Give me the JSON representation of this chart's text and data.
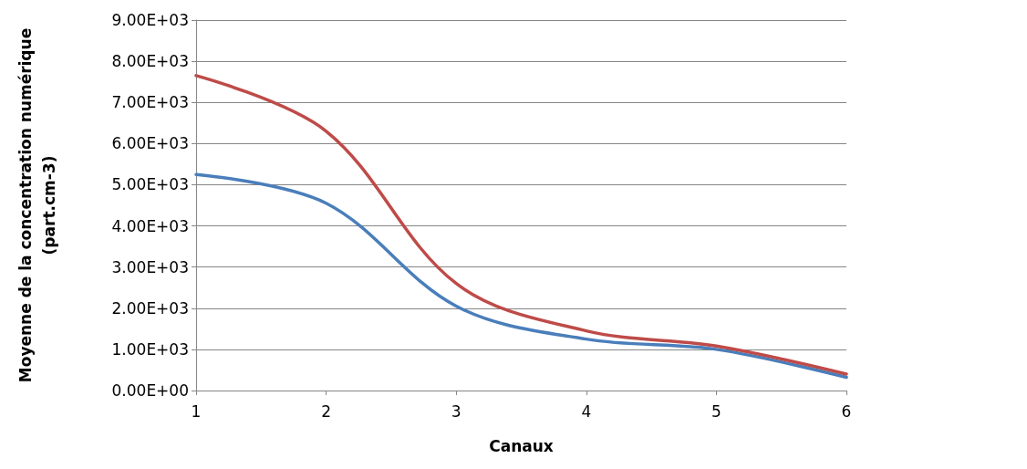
{
  "chart_data": {
    "type": "line",
    "xlabel": "Canaux",
    "ylabel": "Moyenne de la concentration numérique\n(part.cm-3)",
    "x": [
      1,
      2,
      3,
      4,
      5,
      6
    ],
    "series": [
      {
        "color": "#4a7ebb",
        "values": [
          5250,
          4550,
          2050,
          1250,
          1000,
          320
        ]
      },
      {
        "color": "#be4b48",
        "values": [
          7650,
          6300,
          2600,
          1450,
          1080,
          400
        ]
      }
    ],
    "xlim": [
      1,
      6
    ],
    "xticks": [
      1,
      2,
      3,
      4,
      5,
      6
    ],
    "ylim": [
      0,
      9000
    ],
    "yticks": [
      {
        "value": 0,
        "label": "0.00E+00"
      },
      {
        "value": 1000,
        "label": "1.00E+03"
      },
      {
        "value": 2000,
        "label": "2.00E+03"
      },
      {
        "value": 3000,
        "label": "3.00E+03"
      },
      {
        "value": 4000,
        "label": "4.00E+03"
      },
      {
        "value": 5000,
        "label": "5.00E+03"
      },
      {
        "value": 6000,
        "label": "6.00E+03"
      },
      {
        "value": 7000,
        "label": "7.00E+03"
      },
      {
        "value": 8000,
        "label": "8.00E+03"
      },
      {
        "value": 9000,
        "label": "9.00E+03"
      }
    ],
    "grid": "y",
    "marker": "none",
    "line_style": "solid"
  }
}
